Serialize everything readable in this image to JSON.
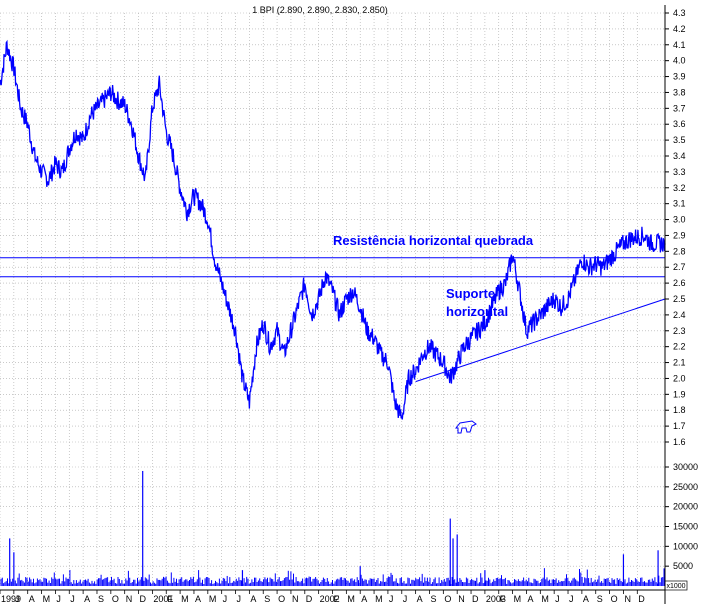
{
  "chart_data": [
    {
      "type": "line",
      "title": "1 BPI (2.890, 2.890, 2.830, 2.850)",
      "ylim": [
        1.6,
        4.3
      ],
      "y_ticks": [
        1.6,
        1.7,
        1.8,
        1.9,
        2.0,
        2.1,
        2.2,
        2.3,
        2.4,
        2.5,
        2.6,
        2.7,
        2.8,
        2.9,
        3.0,
        3.1,
        3.2,
        3.3,
        3.4,
        3.5,
        3.6,
        3.7,
        3.8,
        3.9,
        4.0,
        4.1,
        4.2,
        4.3
      ],
      "y_tick_labels": [
        "1.6",
        "1.7",
        "1.8",
        "1.9",
        "2.0",
        "2.1",
        "2.2",
        "2.3",
        "2.4",
        "2.5",
        "2.6",
        "2.7",
        "2.8",
        "2.9",
        "3.0",
        "3.1",
        "3.2",
        "3.3",
        "3.4",
        "3.5",
        "3.6",
        "3.7",
        "3.8",
        "3.9",
        "4.0",
        "4.1",
        "4.2",
        "4.3"
      ],
      "x_range": [
        0,
        48
      ],
      "grid": true,
      "series": [
        {
          "x": [
            0,
            0.5,
            1,
            1.5,
            2,
            2.5,
            3,
            3.5,
            4,
            4.5,
            5,
            5.5,
            6,
            6.5,
            7,
            7.5,
            8,
            8.5,
            9,
            9.5,
            10,
            10.5,
            11,
            11.5,
            12,
            12.5,
            13,
            13.5,
            14,
            14.5,
            15,
            15.5,
            16,
            16.5,
            17,
            17.5,
            18,
            18.5,
            19,
            19.5,
            20,
            20.5,
            21,
            21.5,
            22,
            22.5,
            23,
            23.5,
            24,
            24.5,
            25,
            25.5,
            26,
            26.5,
            27,
            27.5,
            28,
            28.5,
            29,
            29.5,
            30,
            30.5,
            31,
            31.5,
            32,
            32.5,
            33,
            33.5,
            34,
            34.5,
            35,
            35.5,
            36,
            36.5,
            37,
            37.5,
            38,
            38.5,
            39,
            39.5,
            40,
            40.5,
            41,
            41.5,
            42,
            42.5,
            43,
            43.5,
            44,
            44.5,
            45,
            45.5,
            46,
            46.5,
            47,
            47.5,
            48
          ],
          "values": [
            3.85,
            4.1,
            3.95,
            3.7,
            3.6,
            3.4,
            3.3,
            3.25,
            3.35,
            3.3,
            3.45,
            3.55,
            3.5,
            3.65,
            3.7,
            3.75,
            3.8,
            3.75,
            3.72,
            3.6,
            3.4,
            3.25,
            3.7,
            3.85,
            3.55,
            3.4,
            3.2,
            3.05,
            3.15,
            3.1,
            3.0,
            2.75,
            2.6,
            2.45,
            2.3,
            2.0,
            1.85,
            2.2,
            2.35,
            2.2,
            2.3,
            2.15,
            2.3,
            2.45,
            2.6,
            2.4,
            2.5,
            2.65,
            2.55,
            2.4,
            2.5,
            2.55,
            2.45,
            2.3,
            2.25,
            2.15,
            2.1,
            1.85,
            1.75,
            2.0,
            2.05,
            2.15,
            2.2,
            2.15,
            2.1,
            2.0,
            2.1,
            2.2,
            2.25,
            2.3,
            2.35,
            2.45,
            2.55,
            2.6,
            2.78,
            2.55,
            2.3,
            2.35,
            2.4,
            2.45,
            2.5,
            2.45,
            2.5,
            2.62,
            2.75,
            2.7,
            2.72,
            2.7,
            2.75,
            2.8,
            2.85,
            2.88,
            2.89,
            2.9,
            2.85,
            2.85,
            2.85
          ]
        }
      ],
      "horizontal_lines": [
        {
          "y": 2.76,
          "color": "#0000ff"
        },
        {
          "y": 2.64,
          "color": "#0000ff"
        }
      ],
      "trend_lines": [
        {
          "x": [
            30,
            48
          ],
          "y": [
            1.98,
            2.5
          ],
          "color": "#0000ff"
        }
      ],
      "annotations": [
        {
          "text": "Resistência horizontal quebrada"
        },
        {
          "text": "Suporte"
        },
        {
          "text": "horizontal"
        }
      ],
      "colors": {
        "line": "#0000ff",
        "grid": "#aaaaaa",
        "axis": "#000000",
        "text": "#000000",
        "annotation": "#0000ff"
      }
    },
    {
      "type": "bar",
      "title": "",
      "ylim": [
        0,
        30000
      ],
      "y_ticks": [
        5000,
        10000,
        15000,
        20000,
        25000,
        30000
      ],
      "y_tick_labels": [
        "5000",
        "10000",
        "15000",
        "20000",
        "25000",
        "30000"
      ],
      "units_label": "x1000",
      "spikes": [
        {
          "x": 0.7,
          "value": 12000
        },
        {
          "x": 1.0,
          "value": 8500
        },
        {
          "x": 10.3,
          "value": 29000
        },
        {
          "x": 17.5,
          "value": 4000
        },
        {
          "x": 26.0,
          "value": 5000
        },
        {
          "x": 32.5,
          "value": 17000
        },
        {
          "x": 32.7,
          "value": 12000
        },
        {
          "x": 33.0,
          "value": 13000
        },
        {
          "x": 35.0,
          "value": 4000
        },
        {
          "x": 45.0,
          "value": 8000
        },
        {
          "x": 47.5,
          "value": 9000
        }
      ],
      "colors": {
        "bar": "#0000ff"
      }
    }
  ],
  "x_axis": {
    "month_labels": [
      "1999",
      "J",
      "A",
      "M",
      "J",
      "J",
      "A",
      "S",
      "O",
      "N",
      "D",
      "2001",
      "F",
      "M",
      "A",
      "M",
      "J",
      "J",
      "A",
      "S",
      "O",
      "N",
      "D",
      "2002",
      "F",
      "M",
      "A",
      "M",
      "J",
      "J",
      "A",
      "S",
      "O",
      "N",
      "D",
      "2003",
      "F",
      "M",
      "A",
      "M",
      "J",
      "J",
      "A",
      "S",
      "O",
      "N",
      "D"
    ]
  }
}
